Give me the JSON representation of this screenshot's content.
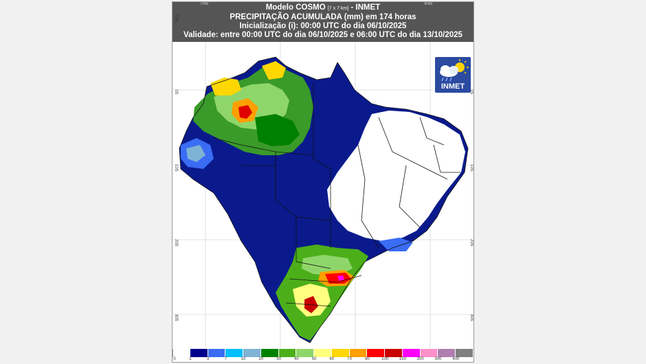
{
  "header": {
    "line1_main": "Modelo COSMO",
    "line1_small": "[7 x 7 km]",
    "line1_suffix": "- INMET",
    "line2": "PRECIPITAÇÃO ACUMULADA (mm) em 174 horas",
    "line3": "Inicialização (i): 00:00 UTC do dia 06/10/2025",
    "line4": "Validade: entre 00:00 UTC do dia 06/10/2025 e 06:00 UTC do dia 13/10/2025"
  },
  "grid_labels": {
    "lon": [
      "70W",
      "40W"
    ],
    "lat_left": [
      "10N",
      "0S",
      "10S",
      "20S",
      "30S"
    ],
    "lat_right": [
      "0S",
      "10S",
      "20S",
      "30S"
    ]
  },
  "logo": {
    "text": "INMET",
    "icon": "sun-cloud-rain-icon"
  },
  "legend": {
    "labels": [
      "0",
      "1",
      "3",
      "7",
      "10",
      "20",
      "30",
      "40",
      "50",
      "60",
      "70",
      "80",
      "100",
      "150",
      "200",
      "300",
      "400"
    ],
    "colors": [
      "#ffffff",
      "#00008b",
      "#3a6cf4",
      "#00bfff",
      "#7fb3d5",
      "#008000",
      "#4caf1a",
      "#8fd66a",
      "#ffff7f",
      "#ffd700",
      "#ff9f00",
      "#ff0000",
      "#c80000",
      "#ff00ff",
      "#ff90c8",
      "#b07fb0",
      "#808080"
    ]
  }
}
